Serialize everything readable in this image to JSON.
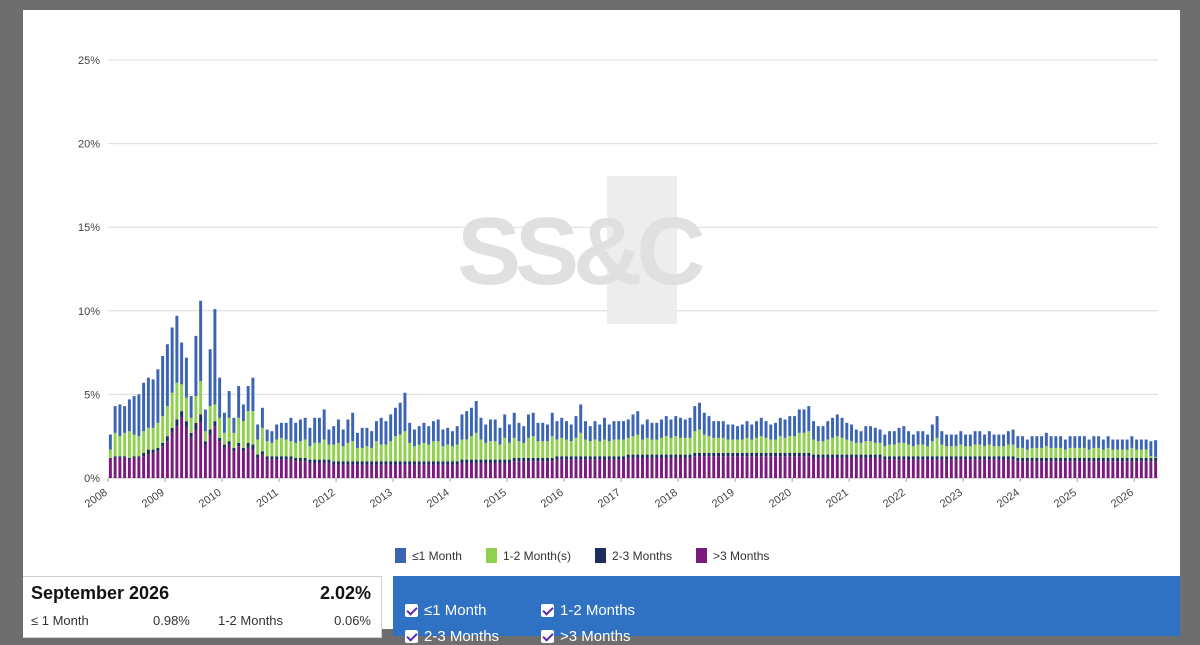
{
  "watermark": "SS&C",
  "chart_data": {
    "type": "bar",
    "stacked": true,
    "ylim": [
      0,
      25
    ],
    "yticks": [
      "0%",
      "5%",
      "10%",
      "15%",
      "20%",
      "25%"
    ],
    "xticks": [
      "2008",
      "2009",
      "2010",
      "2011",
      "2012",
      "2013",
      "2014",
      "2015",
      "2016",
      "2017",
      "2018",
      "2019",
      "2020",
      "2021",
      "2022",
      "2023",
      "2024",
      "2025",
      "2026"
    ],
    "x_start": "2008-01",
    "x_end": "2026-09",
    "grid": true,
    "legend_position": "bottom",
    "series": [
      {
        "name": "≤1 Month",
        "color": "#3b64b3",
        "values": [
          0.9,
          1.6,
          1.9,
          1.6,
          1.9,
          2.3,
          2.5,
          2.9,
          3.0,
          2.9,
          3.2,
          3.6,
          3.7,
          3.9,
          4.0,
          2.5,
          2.4,
          1.3,
          3.6,
          4.8,
          1.3,
          3.4,
          5.7,
          2.4,
          1.2,
          1.6,
          0.9,
          1.9,
          1.0,
          1.5,
          2.0,
          0.9,
          1.2,
          0.7,
          0.7,
          0.9,
          0.9,
          1.0,
          1.4,
          1.2,
          1.3,
          1.3,
          1.1,
          1.5,
          1.5,
          1.8,
          0.9,
          1.1,
          1.4,
          1.0,
          1.4,
          1.7,
          0.9,
          1.2,
          1.1,
          1.0,
          1.2,
          1.6,
          1.4,
          1.6,
          1.7,
          1.9,
          2.3,
          1.2,
          1.0,
          1.1,
          1.2,
          1.1,
          1.2,
          1.3,
          1.0,
          1.0,
          0.9,
          1.1,
          1.5,
          1.7,
          1.7,
          1.9,
          1.3,
          1.1,
          1.3,
          1.3,
          1.0,
          1.4,
          1.1,
          1.5,
          1.1,
          1.0,
          1.4,
          1.4,
          1.1,
          1.1,
          1.0,
          1.4,
          1.1,
          1.2,
          1.1,
          1.0,
          1.3,
          1.7,
          1.1,
          0.9,
          1.1,
          1.0,
          1.3,
          1.0,
          1.1,
          1.1,
          1.1,
          1.1,
          1.3,
          1.4,
          0.9,
          1.1,
          1.0,
          1.0,
          1.1,
          1.2,
          1.1,
          1.2,
          1.2,
          1.1,
          1.2,
          1.5,
          1.6,
          1.3,
          1.2,
          1.0,
          1.0,
          1.0,
          0.9,
          0.9,
          0.8,
          0.9,
          1.0,
          0.9,
          1.0,
          1.1,
          1.0,
          0.9,
          1.0,
          1.1,
          1.1,
          1.2,
          1.2,
          1.4,
          1.4,
          1.5,
          1.1,
          0.9,
          0.9,
          1.1,
          1.2,
          1.3,
          1.2,
          1.0,
          1.0,
          0.8,
          0.7,
          0.9,
          0.9,
          0.9,
          0.8,
          0.7,
          0.8,
          0.8,
          0.9,
          1.0,
          0.8,
          0.7,
          0.8,
          0.8,
          0.7,
          1.0,
          1.3,
          0.8,
          0.7,
          0.7,
          0.7,
          0.8,
          0.7,
          0.7,
          0.8,
          0.8,
          0.7,
          0.8,
          0.7,
          0.7,
          0.7,
          0.8,
          0.9,
          0.7,
          0.7,
          0.6,
          0.7,
          0.7,
          0.7,
          0.8,
          0.7,
          0.7,
          0.7,
          0.6,
          0.7,
          0.7,
          0.7,
          0.7,
          0.6,
          0.7,
          0.7,
          0.6,
          0.7,
          0.6,
          0.6,
          0.6,
          0.6,
          0.7,
          0.6,
          0.6,
          0.6,
          0.9,
          1.0
        ]
      },
      {
        "name": "1-2 Month(s)",
        "color": "#8fd14f",
        "values": [
          0.5,
          1.4,
          1.2,
          1.4,
          1.6,
          1.3,
          1.2,
          1.3,
          1.3,
          1.3,
          1.5,
          1.6,
          1.8,
          2.1,
          2.2,
          1.6,
          1.4,
          0.9,
          1.6,
          2.0,
          0.6,
          1.4,
          1.0,
          1.2,
          0.7,
          1.4,
          0.9,
          1.5,
          1.6,
          1.9,
          2.0,
          0.9,
          1.4,
          0.9,
          0.8,
          1.0,
          1.1,
          1.0,
          0.9,
          0.9,
          1.0,
          1.1,
          0.8,
          1.0,
          1.0,
          1.2,
          0.9,
          1.0,
          1.1,
          0.9,
          1.1,
          1.2,
          0.8,
          0.8,
          0.9,
          0.8,
          1.2,
          1.0,
          1.0,
          1.2,
          1.5,
          1.6,
          1.8,
          1.1,
          0.9,
          1.0,
          1.1,
          1.0,
          1.2,
          1.2,
          0.9,
          1.0,
          0.9,
          1.0,
          1.2,
          1.2,
          1.4,
          1.6,
          1.2,
          1.0,
          1.1,
          1.1,
          0.9,
          1.3,
          1.0,
          1.2,
          1.0,
          0.9,
          1.2,
          1.3,
          1.0,
          1.0,
          1.0,
          1.3,
          1.0,
          1.1,
          1.0,
          0.9,
          1.1,
          1.4,
          1.0,
          0.9,
          1.0,
          0.9,
          1.0,
          0.9,
          1.0,
          1.0,
          1.0,
          1.0,
          1.1,
          1.2,
          0.9,
          1.0,
          0.9,
          0.9,
          1.0,
          1.1,
          1.0,
          1.1,
          1.0,
          1.0,
          1.0,
          1.3,
          1.4,
          1.1,
          1.0,
          0.9,
          0.9,
          0.9,
          0.8,
          0.8,
          0.8,
          0.8,
          0.9,
          0.8,
          0.9,
          1.0,
          0.9,
          0.8,
          0.8,
          1.0,
          0.9,
          1.0,
          1.0,
          1.2,
          1.2,
          1.3,
          0.9,
          0.8,
          0.8,
          0.9,
          1.0,
          1.1,
          1.0,
          0.9,
          0.8,
          0.7,
          0.7,
          0.8,
          0.8,
          0.7,
          0.7,
          0.6,
          0.7,
          0.7,
          0.8,
          0.8,
          0.7,
          0.6,
          0.7,
          0.7,
          0.6,
          0.9,
          1.1,
          0.7,
          0.6,
          0.6,
          0.6,
          0.7,
          0.6,
          0.6,
          0.7,
          0.7,
          0.6,
          0.7,
          0.6,
          0.6,
          0.6,
          0.7,
          0.7,
          0.6,
          0.6,
          0.5,
          0.6,
          0.6,
          0.6,
          0.7,
          0.6,
          0.6,
          0.6,
          0.5,
          0.6,
          0.6,
          0.6,
          0.6,
          0.5,
          0.6,
          0.6,
          0.5,
          0.6,
          0.5,
          0.5,
          0.5,
          0.5,
          0.6,
          0.5,
          0.5,
          0.5,
          0.1,
          0.06
        ]
      },
      {
        "name": "2-3 Months",
        "color": "#1f2d5e",
        "values": [
          0.0,
          0.1,
          0.1,
          0.1,
          0.1,
          0.1,
          0.1,
          0.2,
          0.3,
          0.2,
          0.2,
          0.2,
          0.3,
          0.3,
          0.4,
          0.4,
          0.4,
          0.3,
          0.4,
          0.5,
          0.2,
          0.3,
          0.3,
          0.2,
          0.2,
          0.2,
          0.2,
          0.2,
          0.2,
          0.3,
          0.3,
          0.2,
          0.2,
          0.2,
          0.2,
          0.2,
          0.2,
          0.2,
          0.2,
          0.2,
          0.2,
          0.2,
          0.2,
          0.2,
          0.2,
          0.2,
          0.2,
          0.2,
          0.2,
          0.2,
          0.2,
          0.2,
          0.2,
          0.2,
          0.2,
          0.2,
          0.2,
          0.2,
          0.2,
          0.2,
          0.2,
          0.2,
          0.2,
          0.2,
          0.2,
          0.2,
          0.2,
          0.2,
          0.2,
          0.2,
          0.2,
          0.2,
          0.2,
          0.2,
          0.2,
          0.2,
          0.2,
          0.2,
          0.2,
          0.2,
          0.2,
          0.2,
          0.2,
          0.2,
          0.2,
          0.2,
          0.2,
          0.2,
          0.2,
          0.2,
          0.2,
          0.2,
          0.2,
          0.2,
          0.2,
          0.2,
          0.2,
          0.2,
          0.2,
          0.2,
          0.2,
          0.2,
          0.2,
          0.2,
          0.2,
          0.2,
          0.2,
          0.2,
          0.2,
          0.2,
          0.2,
          0.2,
          0.2,
          0.2,
          0.2,
          0.2,
          0.2,
          0.2,
          0.2,
          0.2,
          0.2,
          0.2,
          0.2,
          0.2,
          0.2,
          0.2,
          0.2,
          0.2,
          0.2,
          0.2,
          0.2,
          0.2,
          0.2,
          0.2,
          0.2,
          0.2,
          0.2,
          0.2,
          0.2,
          0.2,
          0.2,
          0.2,
          0.2,
          0.2,
          0.2,
          0.2,
          0.2,
          0.2,
          0.2,
          0.2,
          0.2,
          0.2,
          0.2,
          0.2,
          0.2,
          0.2,
          0.2,
          0.2,
          0.2,
          0.2,
          0.2,
          0.2,
          0.2,
          0.2,
          0.2,
          0.2,
          0.2,
          0.2,
          0.2,
          0.2,
          0.2,
          0.2,
          0.2,
          0.2,
          0.2,
          0.2,
          0.2,
          0.2,
          0.2,
          0.2,
          0.2,
          0.2,
          0.2,
          0.2,
          0.2,
          0.2,
          0.2,
          0.2,
          0.2,
          0.2,
          0.2,
          0.2,
          0.2,
          0.2,
          0.2,
          0.2,
          0.2,
          0.2,
          0.2,
          0.2,
          0.2,
          0.2,
          0.2,
          0.2,
          0.2,
          0.2,
          0.2,
          0.2,
          0.2,
          0.2,
          0.2,
          0.2,
          0.2,
          0.2,
          0.2,
          0.2,
          0.2,
          0.2,
          0.2,
          0.2,
          0.2,
          0.2,
          0.2,
          0.2,
          0.2,
          0.2,
          0.2,
          0.2,
          0.2,
          0.1,
          0.1
        ]
      },
      {
        "name": ">3 Months",
        "color": "#7b1a7e",
        "values": [
          1.2,
          1.2,
          1.2,
          1.2,
          1.1,
          1.2,
          1.2,
          1.3,
          1.4,
          1.5,
          1.6,
          1.9,
          2.2,
          2.7,
          3.1,
          3.6,
          3.0,
          2.4,
          2.9,
          3.3,
          2.0,
          2.6,
          3.1,
          2.2,
          1.8,
          2.0,
          1.6,
          1.9,
          1.6,
          1.8,
          1.7,
          1.2,
          1.4,
          1.1,
          1.1,
          1.1,
          1.1,
          1.1,
          1.1,
          1.0,
          1.0,
          1.0,
          0.9,
          0.9,
          0.9,
          0.9,
          0.9,
          0.8,
          0.8,
          0.8,
          0.8,
          0.8,
          0.8,
          0.8,
          0.8,
          0.8,
          0.8,
          0.8,
          0.8,
          0.8,
          0.8,
          0.8,
          0.8,
          0.8,
          0.8,
          0.8,
          0.8,
          0.8,
          0.8,
          0.8,
          0.8,
          0.8,
          0.8,
          0.8,
          0.9,
          0.9,
          0.9,
          0.9,
          0.9,
          0.9,
          0.9,
          0.9,
          0.9,
          0.9,
          0.9,
          1.0,
          1.0,
          1.0,
          1.0,
          1.0,
          1.0,
          1.0,
          1.0,
          1.0,
          1.1,
          1.1,
          1.1,
          1.1,
          1.1,
          1.1,
          1.1,
          1.1,
          1.1,
          1.1,
          1.1,
          1.1,
          1.1,
          1.1,
          1.1,
          1.2,
          1.2,
          1.2,
          1.2,
          1.2,
          1.2,
          1.2,
          1.2,
          1.2,
          1.2,
          1.2,
          1.2,
          1.2,
          1.2,
          1.3,
          1.3,
          1.3,
          1.3,
          1.3,
          1.3,
          1.3,
          1.3,
          1.3,
          1.3,
          1.3,
          1.3,
          1.3,
          1.3,
          1.3,
          1.3,
          1.3,
          1.3,
          1.3,
          1.3,
          1.3,
          1.3,
          1.3,
          1.3,
          1.3,
          1.2,
          1.2,
          1.2,
          1.2,
          1.2,
          1.2,
          1.2,
          1.2,
          1.2,
          1.2,
          1.2,
          1.2,
          1.2,
          1.2,
          1.2,
          1.1,
          1.1,
          1.1,
          1.1,
          1.1,
          1.1,
          1.1,
          1.1,
          1.1,
          1.1,
          1.1,
          1.1,
          1.1,
          1.1,
          1.1,
          1.1,
          1.1,
          1.1,
          1.1,
          1.1,
          1.1,
          1.1,
          1.1,
          1.1,
          1.1,
          1.1,
          1.1,
          1.1,
          1.0,
          1.0,
          1.0,
          1.0,
          1.0,
          1.0,
          1.0,
          1.0,
          1.0,
          1.0,
          1.0,
          1.0,
          1.0,
          1.0,
          1.0,
          1.0,
          1.0,
          1.0,
          1.0,
          1.0,
          1.0,
          1.0,
          1.0,
          1.0,
          1.0,
          1.0,
          1.0,
          1.0,
          1.0,
          1.0,
          1.0,
          1.0,
          1.0,
          1.0,
          1.0,
          1.0,
          0.9,
          0.9
        ]
      }
    ]
  },
  "legend": {
    "items": [
      {
        "label": "≤1 Month",
        "color": "#3b64b3"
      },
      {
        "label": "1-2 Month(s)",
        "color": "#8fd14f"
      },
      {
        "label": "2-3 Months",
        "color": "#1f2d5e"
      },
      {
        "label": ">3 Months",
        "color": "#7b1a7e"
      }
    ]
  },
  "info": {
    "title": "September 2026",
    "total": "2.02%",
    "row1_label_a": "≤ 1 Month",
    "row1_value_a": "0.98%",
    "row1_label_b": "1-2 Months",
    "row1_value_b": "0.06%"
  },
  "filters": {
    "f1": "≤1 Month",
    "f2": "1-2 Months",
    "f3": "2-3 Months",
    "f4": ">3 Months"
  }
}
